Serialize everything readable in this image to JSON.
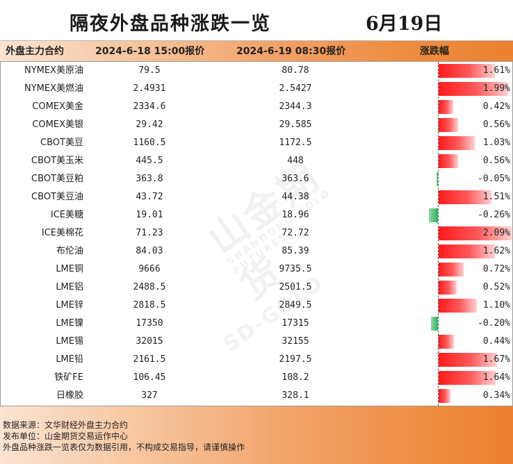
{
  "title": "隔夜外盘品种涨跌一览",
  "date": "6月19日",
  "headers": {
    "name": "外盘主力合约",
    "price1": "2024-6-18 15:00报价",
    "price2": "2024-6-19 08:30报价",
    "change": "涨跌幅"
  },
  "rows": [
    {
      "name": "NYMEX美原油",
      "p1": "79.5",
      "p2": "80.78",
      "pct": "1.61%",
      "value": 1.61
    },
    {
      "name": "NYMEX美燃油",
      "p1": "2.4931",
      "p2": "2.5427",
      "pct": "1.99%",
      "value": 1.99
    },
    {
      "name": "COMEX美金",
      "p1": "2334.6",
      "p2": "2344.3",
      "pct": "0.42%",
      "value": 0.42
    },
    {
      "name": "COMEX美银",
      "p1": "29.42",
      "p2": "29.585",
      "pct": "0.56%",
      "value": 0.56
    },
    {
      "name": "CBOT美豆",
      "p1": "1160.5",
      "p2": "1172.5",
      "pct": "1.03%",
      "value": 1.03
    },
    {
      "name": "CBOT美玉米",
      "p1": "445.5",
      "p2": "448",
      "pct": "0.56%",
      "value": 0.56
    },
    {
      "name": "CBOT美豆粕",
      "p1": "363.8",
      "p2": "363.6",
      "pct": "-0.05%",
      "value": -0.05
    },
    {
      "name": "CBOT美豆油",
      "p1": "43.72",
      "p2": "44.38",
      "pct": "1.51%",
      "value": 1.51
    },
    {
      "name": "ICE美糖",
      "p1": "19.01",
      "p2": "18.96",
      "pct": "-0.26%",
      "value": -0.26
    },
    {
      "name": "ICE美棉花",
      "p1": "71.23",
      "p2": "72.72",
      "pct": "2.09%",
      "value": 2.09
    },
    {
      "name": "布伦油",
      "p1": "84.03",
      "p2": "85.39",
      "pct": "1.62%",
      "value": 1.62
    },
    {
      "name": "LME铜",
      "p1": "9666",
      "p2": "9735.5",
      "pct": "0.72%",
      "value": 0.72
    },
    {
      "name": "LME铝",
      "p1": "2488.5",
      "p2": "2501.5",
      "pct": "0.52%",
      "value": 0.52
    },
    {
      "name": "LME锌",
      "p1": "2818.5",
      "p2": "2849.5",
      "pct": "1.10%",
      "value": 1.1
    },
    {
      "name": "LME镍",
      "p1": "17350",
      "p2": "17315",
      "pct": "-0.20%",
      "value": -0.2
    },
    {
      "name": "LME锡",
      "p1": "32015",
      "p2": "32155",
      "pct": "0.44%",
      "value": 0.44
    },
    {
      "name": "LME铅",
      "p1": "2161.5",
      "p2": "2197.5",
      "pct": "1.67%",
      "value": 1.67
    },
    {
      "name": "铁矿FE",
      "p1": "106.45",
      "p2": "108.2",
      "pct": "1.64%",
      "value": 1.64
    },
    {
      "name": "日橡胶",
      "p1": "327",
      "p2": "328.1",
      "pct": "0.34%",
      "value": 0.34
    }
  ],
  "watermark": {
    "cn": "山金期货",
    "en": "SHANDONG GOLD FUTURES",
    "brand": "SD-GOLD"
  },
  "footer": {
    "line1": "数据来源：文华财经外盘主力合约",
    "line2": "发布单位：山金期货交易运作中心",
    "line3": "外盘品种涨跌一览表仅为数据引用，不构成交易指导，请谨慎操作"
  },
  "colors": {
    "up": "#ff1a1a",
    "down": "#2fb35a",
    "accent": "#ec8131"
  }
}
